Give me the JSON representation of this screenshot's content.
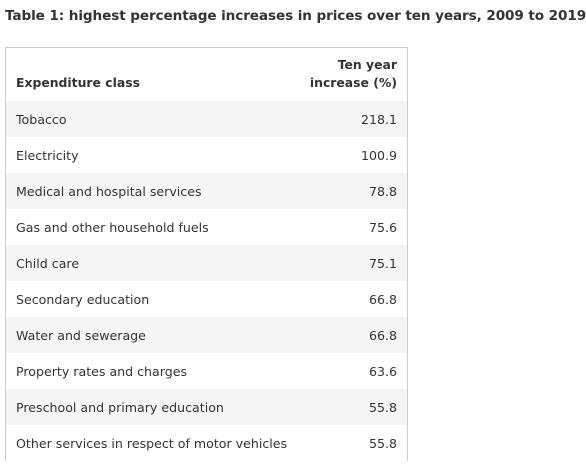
{
  "caption": "Table 1: highest percentage increases in prices over ten years, 2009 to 2019",
  "table": {
    "headers": {
      "class": "Expenditure class",
      "value_line1": "Ten year",
      "value_line2": "increase (%)"
    },
    "rows": [
      {
        "class": "Tobacco",
        "value": "218.1"
      },
      {
        "class": "Electricity",
        "value": "100.9"
      },
      {
        "class": "Medical and hospital services",
        "value": "78.8"
      },
      {
        "class": "Gas and other household fuels",
        "value": "75.6"
      },
      {
        "class": "Child care",
        "value": "75.1"
      },
      {
        "class": "Secondary education",
        "value": "66.8"
      },
      {
        "class": "Water and sewerage",
        "value": "66.8"
      },
      {
        "class": "Property rates and charges",
        "value": "63.6"
      },
      {
        "class": "Preschool and primary education",
        "value": "55.8"
      },
      {
        "class": "Other services in respect of motor vehicles",
        "value": "55.8"
      }
    ]
  },
  "colors": {
    "stripe": "#f5f5f5",
    "border": "#cccccc",
    "text": "#333333"
  }
}
